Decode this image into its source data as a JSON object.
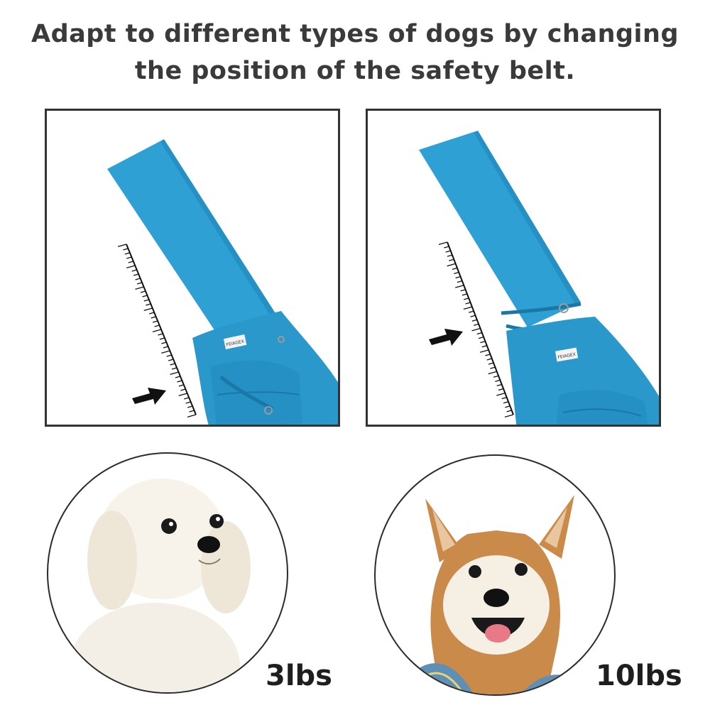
{
  "headline": {
    "line1": "Adapt to different types of dogs by changing",
    "line2": "the position of the safety belt."
  },
  "panels": [
    {
      "label": "FEIAGEX",
      "icon": "arrow-right-icon"
    },
    {
      "label": "FEIAGEX",
      "icon": "arrow-right-icon"
    }
  ],
  "dogs": [
    {
      "weight": "3lbs"
    },
    {
      "weight": "10lbs"
    }
  ],
  "colors": {
    "sling_blue": "#2fa0d4",
    "sling_dark": "#1f86b8",
    "text": "#3a3a3a",
    "border": "#333333"
  }
}
